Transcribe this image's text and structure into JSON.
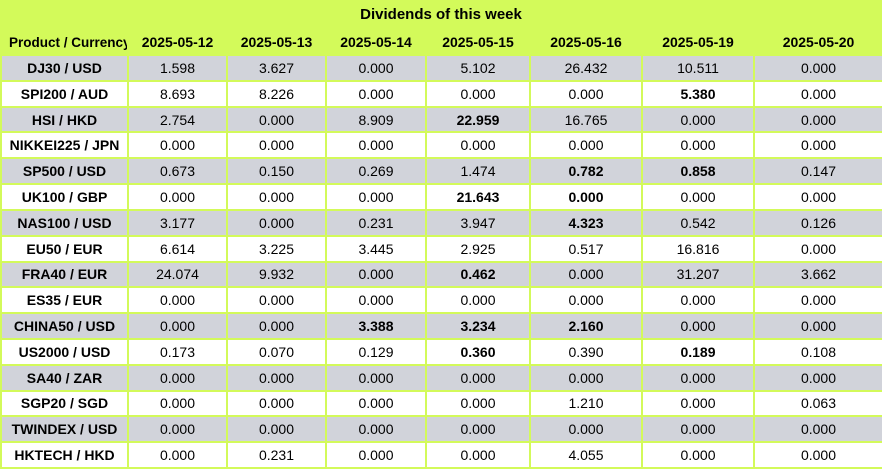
{
  "colors": {
    "accent_green": "#d3fa5a",
    "row_gray": "#d1d3da",
    "row_white": "#ffffff",
    "text": "#000000"
  },
  "chart_data": {
    "type": "table",
    "title": "Dividends of this week",
    "columns": [
      "Product / Currency",
      "2025-05-12",
      "2025-05-13",
      "2025-05-14",
      "2025-05-15",
      "2025-05-16",
      "2025-05-19",
      "2025-05-20"
    ],
    "rows": [
      {
        "product": "DJ30 / USD",
        "values": [
          "1.598",
          "3.627",
          "0.000",
          "5.102",
          "26.432",
          "10.511",
          "0.000"
        ],
        "bold_cols": []
      },
      {
        "product": "SPI200 / AUD",
        "values": [
          "8.693",
          "8.226",
          "0.000",
          "0.000",
          "0.000",
          "5.380",
          "0.000"
        ],
        "bold_cols": [
          5
        ]
      },
      {
        "product": "HSI / HKD",
        "values": [
          "2.754",
          "0.000",
          "8.909",
          "22.959",
          "16.765",
          "0.000",
          "0.000"
        ],
        "bold_cols": [
          3
        ]
      },
      {
        "product": "NIKKEI225 / JPN",
        "values": [
          "0.000",
          "0.000",
          "0.000",
          "0.000",
          "0.000",
          "0.000",
          "0.000"
        ],
        "bold_cols": []
      },
      {
        "product": "SP500 / USD",
        "values": [
          "0.673",
          "0.150",
          "0.269",
          "1.474",
          "0.782",
          "0.858",
          "0.147"
        ],
        "bold_cols": [
          4,
          5
        ]
      },
      {
        "product": "UK100 / GBP",
        "values": [
          "0.000",
          "0.000",
          "0.000",
          "21.643",
          "0.000",
          "0.000",
          "0.000"
        ],
        "bold_cols": [
          3,
          4
        ]
      },
      {
        "product": "NAS100 / USD",
        "values": [
          "3.177",
          "0.000",
          "0.231",
          "3.947",
          "4.323",
          "0.542",
          "0.126"
        ],
        "bold_cols": [
          4
        ]
      },
      {
        "product": "EU50 / EUR",
        "values": [
          "6.614",
          "3.225",
          "3.445",
          "2.925",
          "0.517",
          "16.816",
          "0.000"
        ],
        "bold_cols": []
      },
      {
        "product": "FRA40 / EUR",
        "values": [
          "24.074",
          "9.932",
          "0.000",
          "0.462",
          "0.000",
          "31.207",
          "3.662"
        ],
        "bold_cols": [
          3
        ]
      },
      {
        "product": "ES35 / EUR",
        "values": [
          "0.000",
          "0.000",
          "0.000",
          "0.000",
          "0.000",
          "0.000",
          "0.000"
        ],
        "bold_cols": []
      },
      {
        "product": "CHINA50 / USD",
        "values": [
          "0.000",
          "0.000",
          "3.388",
          "3.234",
          "2.160",
          "0.000",
          "0.000"
        ],
        "bold_cols": [
          2,
          3,
          4
        ]
      },
      {
        "product": "US2000 / USD",
        "values": [
          "0.173",
          "0.070",
          "0.129",
          "0.360",
          "0.390",
          "0.189",
          "0.108"
        ],
        "bold_cols": [
          3,
          5
        ]
      },
      {
        "product": "SA40 / ZAR",
        "values": [
          "0.000",
          "0.000",
          "0.000",
          "0.000",
          "0.000",
          "0.000",
          "0.000"
        ],
        "bold_cols": []
      },
      {
        "product": "SGP20 / SGD",
        "values": [
          "0.000",
          "0.000",
          "0.000",
          "0.000",
          "1.210",
          "0.000",
          "0.063"
        ],
        "bold_cols": []
      },
      {
        "product": "TWINDEX / USD",
        "values": [
          "0.000",
          "0.000",
          "0.000",
          "0.000",
          "0.000",
          "0.000",
          "0.000"
        ],
        "bold_cols": []
      },
      {
        "product": "HKTECH / HKD",
        "values": [
          "0.000",
          "0.231",
          "0.000",
          "0.000",
          "4.055",
          "0.000",
          "0.000"
        ],
        "bold_cols": []
      }
    ]
  }
}
